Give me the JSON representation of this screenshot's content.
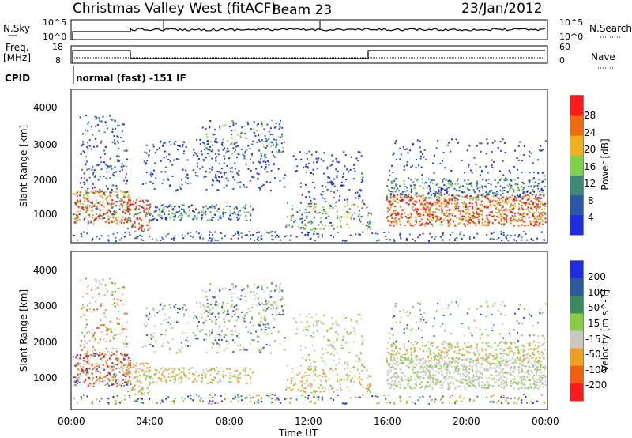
{
  "header": {
    "title": "Christmas Valley West (fitACF)",
    "beam": "Beam 23",
    "date": "23/Jan/2012"
  },
  "top_panels": {
    "nsky_label": "N.Sky",
    "nsky_ticks": [
      "10^5",
      "10^0"
    ],
    "nsearch_label": "N.Search",
    "nsearch_ticks": [
      "10^5",
      "10^0"
    ],
    "freq_label_1": "Freq.",
    "freq_label_2": "[MHz]",
    "freq_ticks": [
      "18",
      "8"
    ],
    "nave_label": "Nave",
    "nave_ticks": [
      "60",
      "0"
    ],
    "cpid_label": "CPID",
    "cpid_text": "normal (fast) -151 IF"
  },
  "chart_data": [
    {
      "type": "heatmap",
      "name": "power",
      "ylabel": "Slant Range [km]",
      "xlabel": "Time UT",
      "ylim": [
        180,
        4500
      ],
      "xlim": [
        "00:00",
        "24:00"
      ],
      "yticks": [
        "1000",
        "2000",
        "3000",
        "4000"
      ],
      "colorbar_label": "Power [dB]",
      "colorbar_ticks": [
        "4",
        "8",
        "12",
        "16",
        "20",
        "24",
        "28"
      ],
      "colorbar_colors": [
        "#1f2ee0",
        "#2859a8",
        "#3d8a78",
        "#7fd04a",
        "#f0b020",
        "#f06a10",
        "#ff1a1a"
      ]
    },
    {
      "type": "heatmap",
      "name": "velocity",
      "ylabel": "Slant Range [km]",
      "xlabel": "Time UT",
      "ylim": [
        180,
        4500
      ],
      "xlim": [
        "00:00",
        "24:00"
      ],
      "yticks": [
        "1000",
        "2000",
        "3000",
        "4000"
      ],
      "colorbar_label": "Velocity [m s^-1]",
      "colorbar_ticks": [
        "200",
        "100",
        "50",
        "15",
        "-15",
        "-50",
        "-100",
        "-200"
      ],
      "colorbar_colors": [
        "#1f2ee0",
        "#2c5aa0",
        "#3a8a60",
        "#88cc44",
        "#c8c8c0",
        "#f0a020",
        "#f06010",
        "#ff1a1a"
      ]
    }
  ],
  "time_axis": {
    "label": "Time UT",
    "ticks": [
      "00:00",
      "04:00",
      "08:00",
      "12:00",
      "16:00",
      "20:00",
      "00:00"
    ]
  }
}
